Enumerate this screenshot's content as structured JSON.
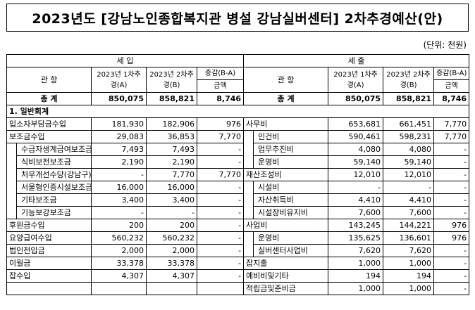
{
  "title": "2023년도 [강남노인종합복지관 병설 강남실버센터] 2차추경예산(안)",
  "unit": "(단위: 천원)",
  "headers": {
    "income": "세 입",
    "expense": "세 출",
    "gwanhang": "관 항",
    "col_a": "2023년 1차추경(A)",
    "col_b": "2023년 2차추경(B)",
    "col_diff": "증감(B-A)",
    "col_amount": "금액"
  },
  "total": {
    "label": "총 계",
    "income_a": "850,075",
    "income_b": "858,821",
    "income_diff": "8,746",
    "expense_a": "850,075",
    "expense_b": "858,821",
    "expense_diff": "8,746"
  },
  "section": "1. 일반회계",
  "rows": [
    {
      "in_label": "입소자부담금수입",
      "in_indent": 0,
      "in_a": "181,930",
      "in_b": "182,906",
      "in_d": "976",
      "ex_label": "사무비",
      "ex_indent": 0,
      "ex_a": "653,681",
      "ex_b": "661,451",
      "ex_d": "7,770"
    },
    {
      "in_label": "보조금수입",
      "in_indent": 0,
      "in_a": "29,083",
      "in_b": "36,853",
      "in_d": "7,770",
      "ex_label": "인건비",
      "ex_indent": 1,
      "ex_a": "590,461",
      "ex_b": "598,231",
      "ex_d": "7,770"
    },
    {
      "in_label": "수급자생계급여보조금",
      "in_indent": 1,
      "in_a": "7,493",
      "in_b": "7,493",
      "in_d": "-",
      "ex_label": "업무추진비",
      "ex_indent": 1,
      "ex_a": "4,080",
      "ex_b": "4,080",
      "ex_d": "-"
    },
    {
      "in_label": "식비보전보조금",
      "in_indent": 1,
      "in_a": "2,190",
      "in_b": "2,190",
      "in_d": "-",
      "ex_label": "운영비",
      "ex_indent": 1,
      "ex_a": "59,140",
      "ex_b": "59,140",
      "ex_d": "-"
    },
    {
      "in_label": "처우개선수당(강남구)",
      "in_indent": 1,
      "in_a": "-",
      "in_b": "7,770",
      "in_d": "7,770",
      "ex_label": "재산조성비",
      "ex_indent": 0,
      "ex_a": "12,010",
      "ex_b": "12,010",
      "ex_d": "-"
    },
    {
      "in_label": "서울형인증시설보조금",
      "in_indent": 1,
      "in_a": "16,000",
      "in_b": "16,000",
      "in_d": "-",
      "ex_label": "시설비",
      "ex_indent": 1,
      "ex_a": "-",
      "ex_b": "-",
      "ex_d": "-"
    },
    {
      "in_label": "기타보조금",
      "in_indent": 1,
      "in_a": "3,400",
      "in_b": "3,400",
      "in_d": "-",
      "ex_label": "자산취득비",
      "ex_indent": 1,
      "ex_a": "4,410",
      "ex_b": "4,410",
      "ex_d": "-"
    },
    {
      "in_label": "기능보강보조금",
      "in_indent": 1,
      "in_a": "-",
      "in_b": "-",
      "in_d": "-",
      "ex_label": "시설장비유지비",
      "ex_indent": 1,
      "ex_a": "7,600",
      "ex_b": "7,600",
      "ex_d": "-"
    },
    {
      "in_label": "후원금수입",
      "in_indent": 0,
      "in_a": "200",
      "in_b": "200",
      "in_d": "-",
      "ex_label": "사업비",
      "ex_indent": 0,
      "ex_a": "143,245",
      "ex_b": "144,221",
      "ex_d": "976"
    },
    {
      "in_label": "요양급여수입",
      "in_indent": 0,
      "in_a": "560,232",
      "in_b": "560,232",
      "in_d": "-",
      "ex_label": "운영비",
      "ex_indent": 1,
      "ex_a": "135,625",
      "ex_b": "136,601",
      "ex_d": "976"
    },
    {
      "in_label": "법인전입금",
      "in_indent": 0,
      "in_a": "2,000",
      "in_b": "2,000",
      "in_d": "-",
      "ex_label": "실버센터사업비",
      "ex_indent": 1,
      "ex_a": "7,620",
      "ex_b": "7,620",
      "ex_d": "-"
    },
    {
      "in_label": "이월금",
      "in_indent": 0,
      "in_a": "33,378",
      "in_b": "33,378",
      "in_d": "-",
      "ex_label": "잡지출",
      "ex_indent": 0,
      "ex_a": "1,000",
      "ex_b": "1,000",
      "ex_d": "-"
    },
    {
      "in_label": "잡수입",
      "in_indent": 0,
      "in_a": "4,307",
      "in_b": "4,307",
      "in_d": "-",
      "ex_label": "예비비및기타",
      "ex_indent": 0,
      "ex_a": "194",
      "ex_b": "194",
      "ex_d": "-"
    },
    {
      "in_label": "",
      "in_indent": 0,
      "in_a": "",
      "in_b": "",
      "in_d": "",
      "ex_label": "적립금및준비금",
      "ex_indent": 0,
      "ex_a": "1,000",
      "ex_b": "1,000",
      "ex_d": "-"
    }
  ]
}
